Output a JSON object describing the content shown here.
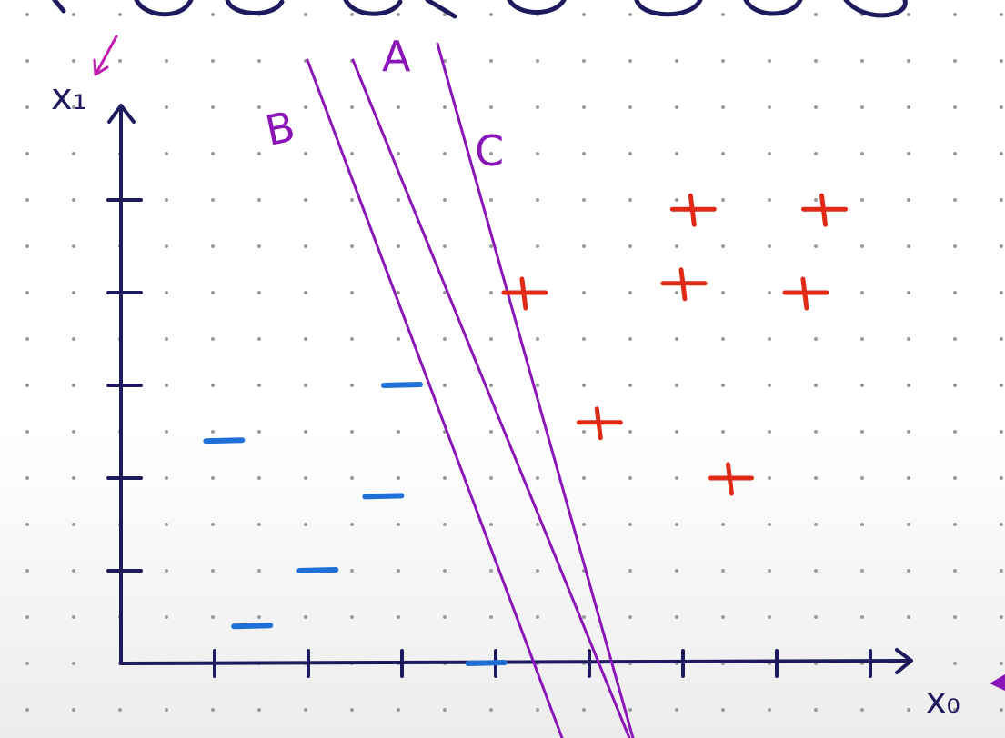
{
  "axes": {
    "x_label": "x₀",
    "y_label": "x₁"
  },
  "colors": {
    "axis": "#1e1a5e",
    "boundary": "#8a16b8",
    "positive": "#e02a16",
    "negative": "#1e6fd6",
    "grid_dot": "#9a9a9a"
  },
  "boundaries": [
    {
      "label": "A"
    },
    {
      "label": "B"
    },
    {
      "label": "C"
    }
  ],
  "marks": {
    "positive_symbol": "+",
    "negative_symbol": "−"
  },
  "chart_data": {
    "type": "scatter",
    "xlabel": "x₀",
    "ylabel": "x₁",
    "xlim": [
      0,
      8.5
    ],
    "ylim": [
      0,
      6
    ],
    "series": [
      {
        "name": "+",
        "points": [
          [
            4.3,
            4
          ],
          [
            5.1,
            2.6
          ],
          [
            6,
            4.1
          ],
          [
            6.5,
            2
          ],
          [
            6.1,
            4.9
          ],
          [
            7.3,
            4
          ],
          [
            7.5,
            4.9
          ]
        ]
      },
      {
        "name": "−",
        "points": [
          [
            1.1,
            2.4
          ],
          [
            1.4,
            0.4
          ],
          [
            2.1,
            1
          ],
          [
            3,
            3
          ],
          [
            2.8,
            1.8
          ],
          [
            3.9,
            0
          ]
        ]
      }
    ]
  }
}
